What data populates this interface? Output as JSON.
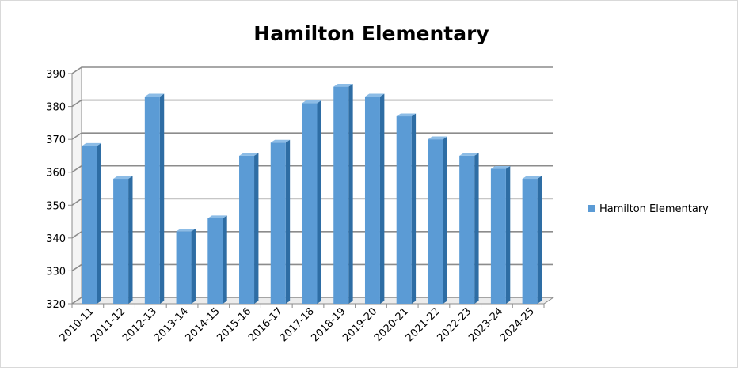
{
  "chart_data": {
    "type": "bar",
    "title": "Hamilton Elementary",
    "xlabel": "",
    "ylabel": "",
    "categories": [
      "2010-11",
      "2011-12",
      "2012-13",
      "2013-14",
      "2014-15",
      "2015-16",
      "2016-17",
      "2017-18",
      "2018-19",
      "2019-20",
      "2020-21",
      "2021-22",
      "2022-23",
      "2023-24",
      "2024-25"
    ],
    "series": [
      {
        "name": "Hamilton Elementary",
        "values": [
          368,
          358,
          383,
          342,
          346,
          365,
          369,
          381,
          386,
          383,
          377,
          370,
          365,
          361,
          358
        ]
      }
    ],
    "ylim": [
      320,
      390
    ],
    "yticks": [
      "320",
      "330",
      "340",
      "350",
      "360",
      "370",
      "380",
      "390"
    ],
    "grid": true,
    "legend_position": "right",
    "colors": {
      "bar_front": "#5b9bd5",
      "bar_side": "#2e6da4",
      "bar_top": "#8cbce6",
      "grid": "#8c8c8c"
    }
  }
}
